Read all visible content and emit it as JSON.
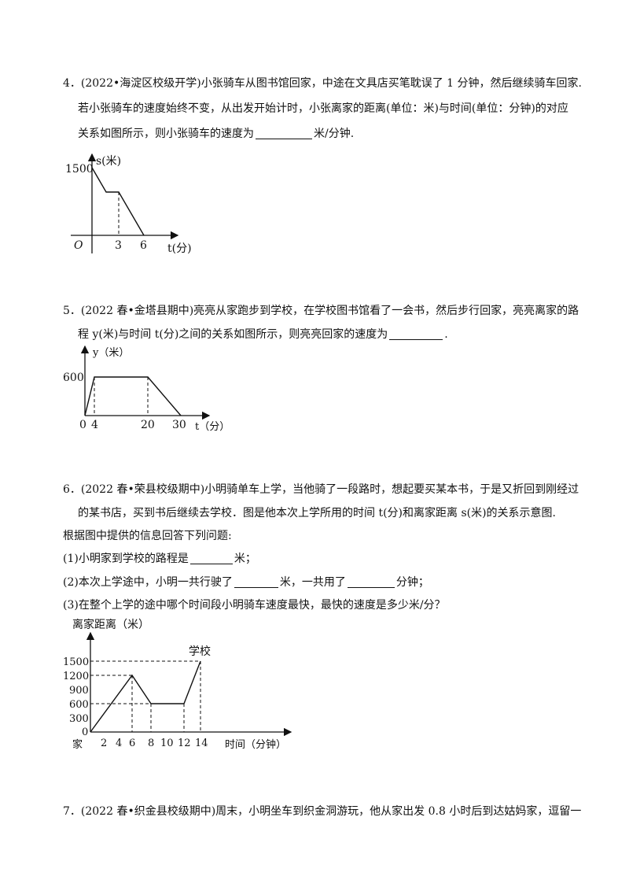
{
  "q4": {
    "line1": "4．(2022•海淀区校级开学)小张骑车从图书馆回家，中途在文具店买笔耽误了 1 分钟，然后继续骑车回家.",
    "line2": "若小张骑车的速度始终不变，从出发开始计时，小张离家的距离(单位：米)与时间(单位：分钟)的对应",
    "line3_before": "关系如图所示，则小张骑车的速度为",
    "line3_after": "米/分钟.",
    "graph": {
      "y_label": "s(米)",
      "x_label": "t(分)",
      "origin": "O",
      "y_tick": "1500",
      "x_ticks": [
        "3",
        "6"
      ]
    }
  },
  "q5": {
    "line1": "5．(2022 春•金塔县期中)亮亮从家跑步到学校，在学校图书馆看了一会书，然后步行回家，亮亮离家的路",
    "line2_before": "程 y(米)与时间 t(分)之间的关系如图所示，则亮亮回家的速度为",
    "line2_after": ".",
    "graph": {
      "y_label": "y（米）",
      "x_label": "t（分）",
      "y_tick": "600",
      "origin": "0",
      "x_ticks": [
        "4",
        "20",
        "30"
      ]
    }
  },
  "q6": {
    "line1": "6．(2022 春•荣县校级期中)小明骑单车上学，当他骑了一段路时，想起要买某本书，于是又折回到刚经过",
    "line2": "的某书店，买到书后继续去学校．图是他本次上学所用的时间 t(分)和离家距离 s(米)的关系示意图.",
    "line3": "根据图中提供的信息回答下列问题:",
    "sub1_before": "(1)小明家到学校的路程是",
    "sub1_after": "米；",
    "sub2_a": "(2)本次上学途中，小明一共行驶了",
    "sub2_b": "米，一共用了",
    "sub2_c": "分钟；",
    "sub3": "(3)在整个上学的途中哪个时间段小明骑车速度最快，最快的速度是多少米/分？",
    "graph": {
      "y_label": "离家距离（米）",
      "x_label": "时间（分钟）",
      "school_label": "学校",
      "home_label": "家",
      "y_ticks": [
        "1500",
        "1200",
        "900",
        "600",
        "300",
        "0"
      ],
      "x_ticks": [
        "2",
        "4",
        "6",
        "8",
        "10",
        "12",
        "14"
      ]
    }
  },
  "q7": {
    "line1": "7．(2022 春•织金县校级期中)周末，小明坐车到织金洞游玩，他从家出发 0.8 小时后到达姑妈家，逗留一"
  }
}
